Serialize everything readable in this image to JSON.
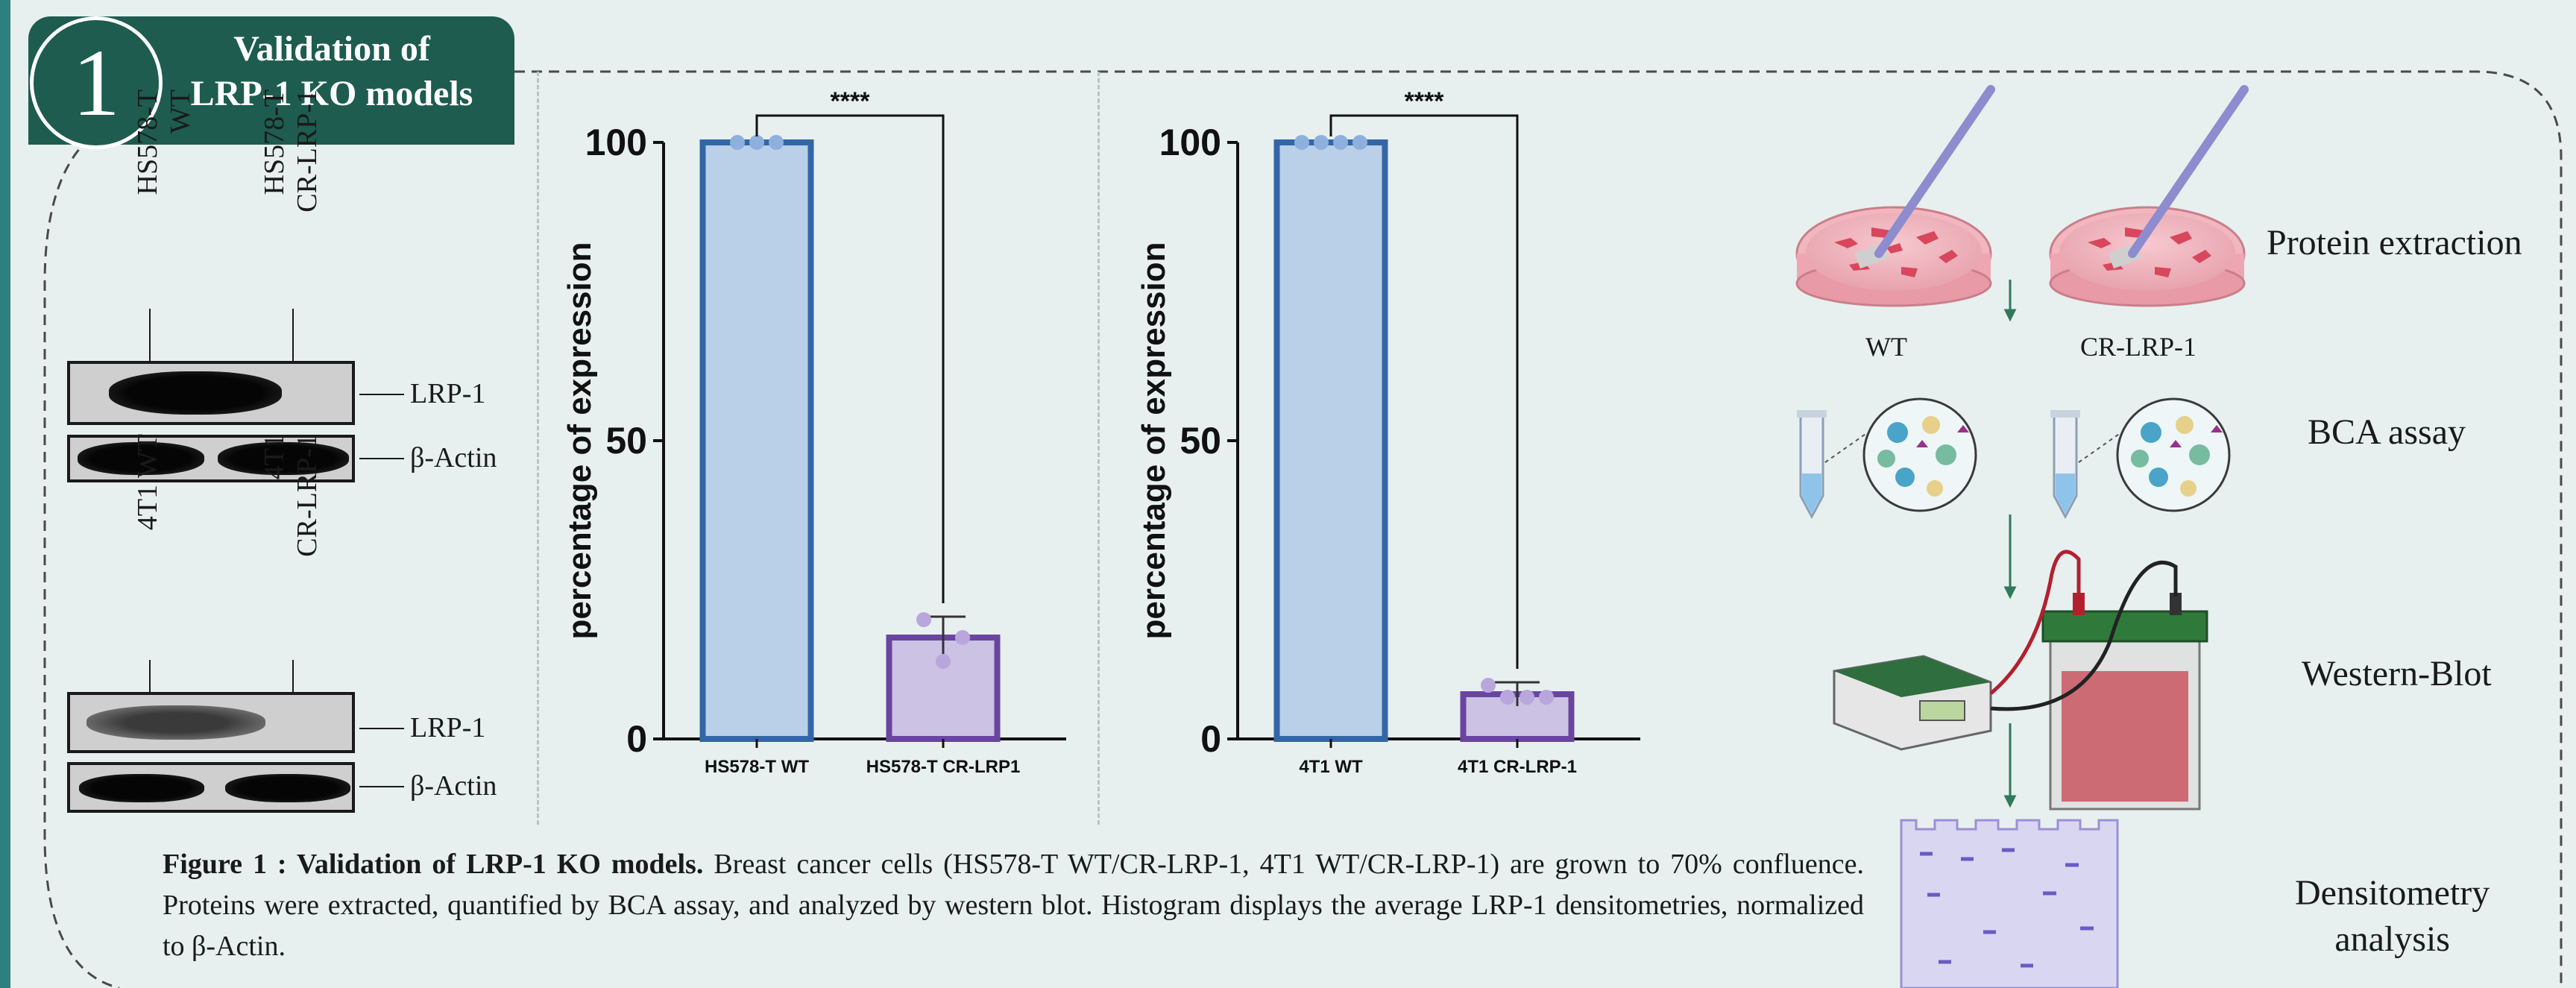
{
  "header": {
    "step_number": "1",
    "title_line1": "Validation of",
    "title_line2": "LRP-1 KO models"
  },
  "colors": {
    "header_bg": "#1e5c50",
    "page_bg": "#e7f0ef",
    "accent_bar": "#2f7f81",
    "wt_fill": "#b9d0e8",
    "wt_stroke": "#3366a6",
    "ko_fill": "#cbc2e4",
    "ko_stroke": "#6a45a0"
  },
  "western_blots": [
    {
      "lane_labels": [
        [
          "HS578-T",
          "WT"
        ],
        [
          "HS578-T",
          "CR-LRP-1"
        ]
      ],
      "rows": [
        {
          "label": "LRP-1",
          "bands": [
            "dark",
            "none"
          ]
        },
        {
          "label": "β-Actin",
          "bands": [
            "dark",
            "dark"
          ]
        }
      ]
    },
    {
      "lane_labels": [
        [
          "4T1 WT"
        ],
        [
          "4T1",
          "CR-LRP-1"
        ]
      ],
      "rows": [
        {
          "label": "LRP-1",
          "bands": [
            "med",
            "none"
          ]
        },
        {
          "label": "β-Actin",
          "bands": [
            "dark",
            "dark"
          ]
        }
      ]
    }
  ],
  "chart_data": [
    {
      "type": "bar",
      "categories": [
        "HS578-T WT",
        "HS578-T CR-LRP1"
      ],
      "values": [
        100,
        17
      ],
      "error": [
        0,
        3.5
      ],
      "points": [
        [
          100,
          100,
          100
        ],
        [
          20,
          13,
          17
        ]
      ],
      "ylabel": "percentage of expression",
      "ylim": [
        0,
        100
      ],
      "yticks": [
        0,
        50,
        100
      ],
      "significance": "****"
    },
    {
      "type": "bar",
      "categories": [
        "4T1 WT",
        "4T1 CR-LRP-1"
      ],
      "values": [
        100,
        7.5
      ],
      "error": [
        0,
        2
      ],
      "points": [
        [
          100,
          100,
          100,
          100
        ],
        [
          9,
          7,
          7,
          7
        ]
      ],
      "ylabel": "percentage of expression",
      "ylim": [
        0,
        100
      ],
      "yticks": [
        0,
        50,
        100
      ],
      "significance": "****"
    }
  ],
  "workflow": {
    "steps": [
      "Protein extraction",
      "BCA assay",
      "Western-Blot"
    ],
    "step_last_line1": "Densitometry",
    "step_last_line2": "analysis",
    "samples": [
      "WT",
      "CR-LRP-1"
    ]
  },
  "caption": {
    "bold": "Figure 1 : Validation of  LRP-1 KO models.",
    "text": " Breast cancer cells (HS578-T WT/CR-LRP-1, 4T1 WT/CR-LRP-1) are grown to 70% confluence. Proteins were extracted, quantified by BCA assay, and analyzed by western blot. Histogram displays the average LRP-1 densitometries, normalized to β-Actin."
  }
}
